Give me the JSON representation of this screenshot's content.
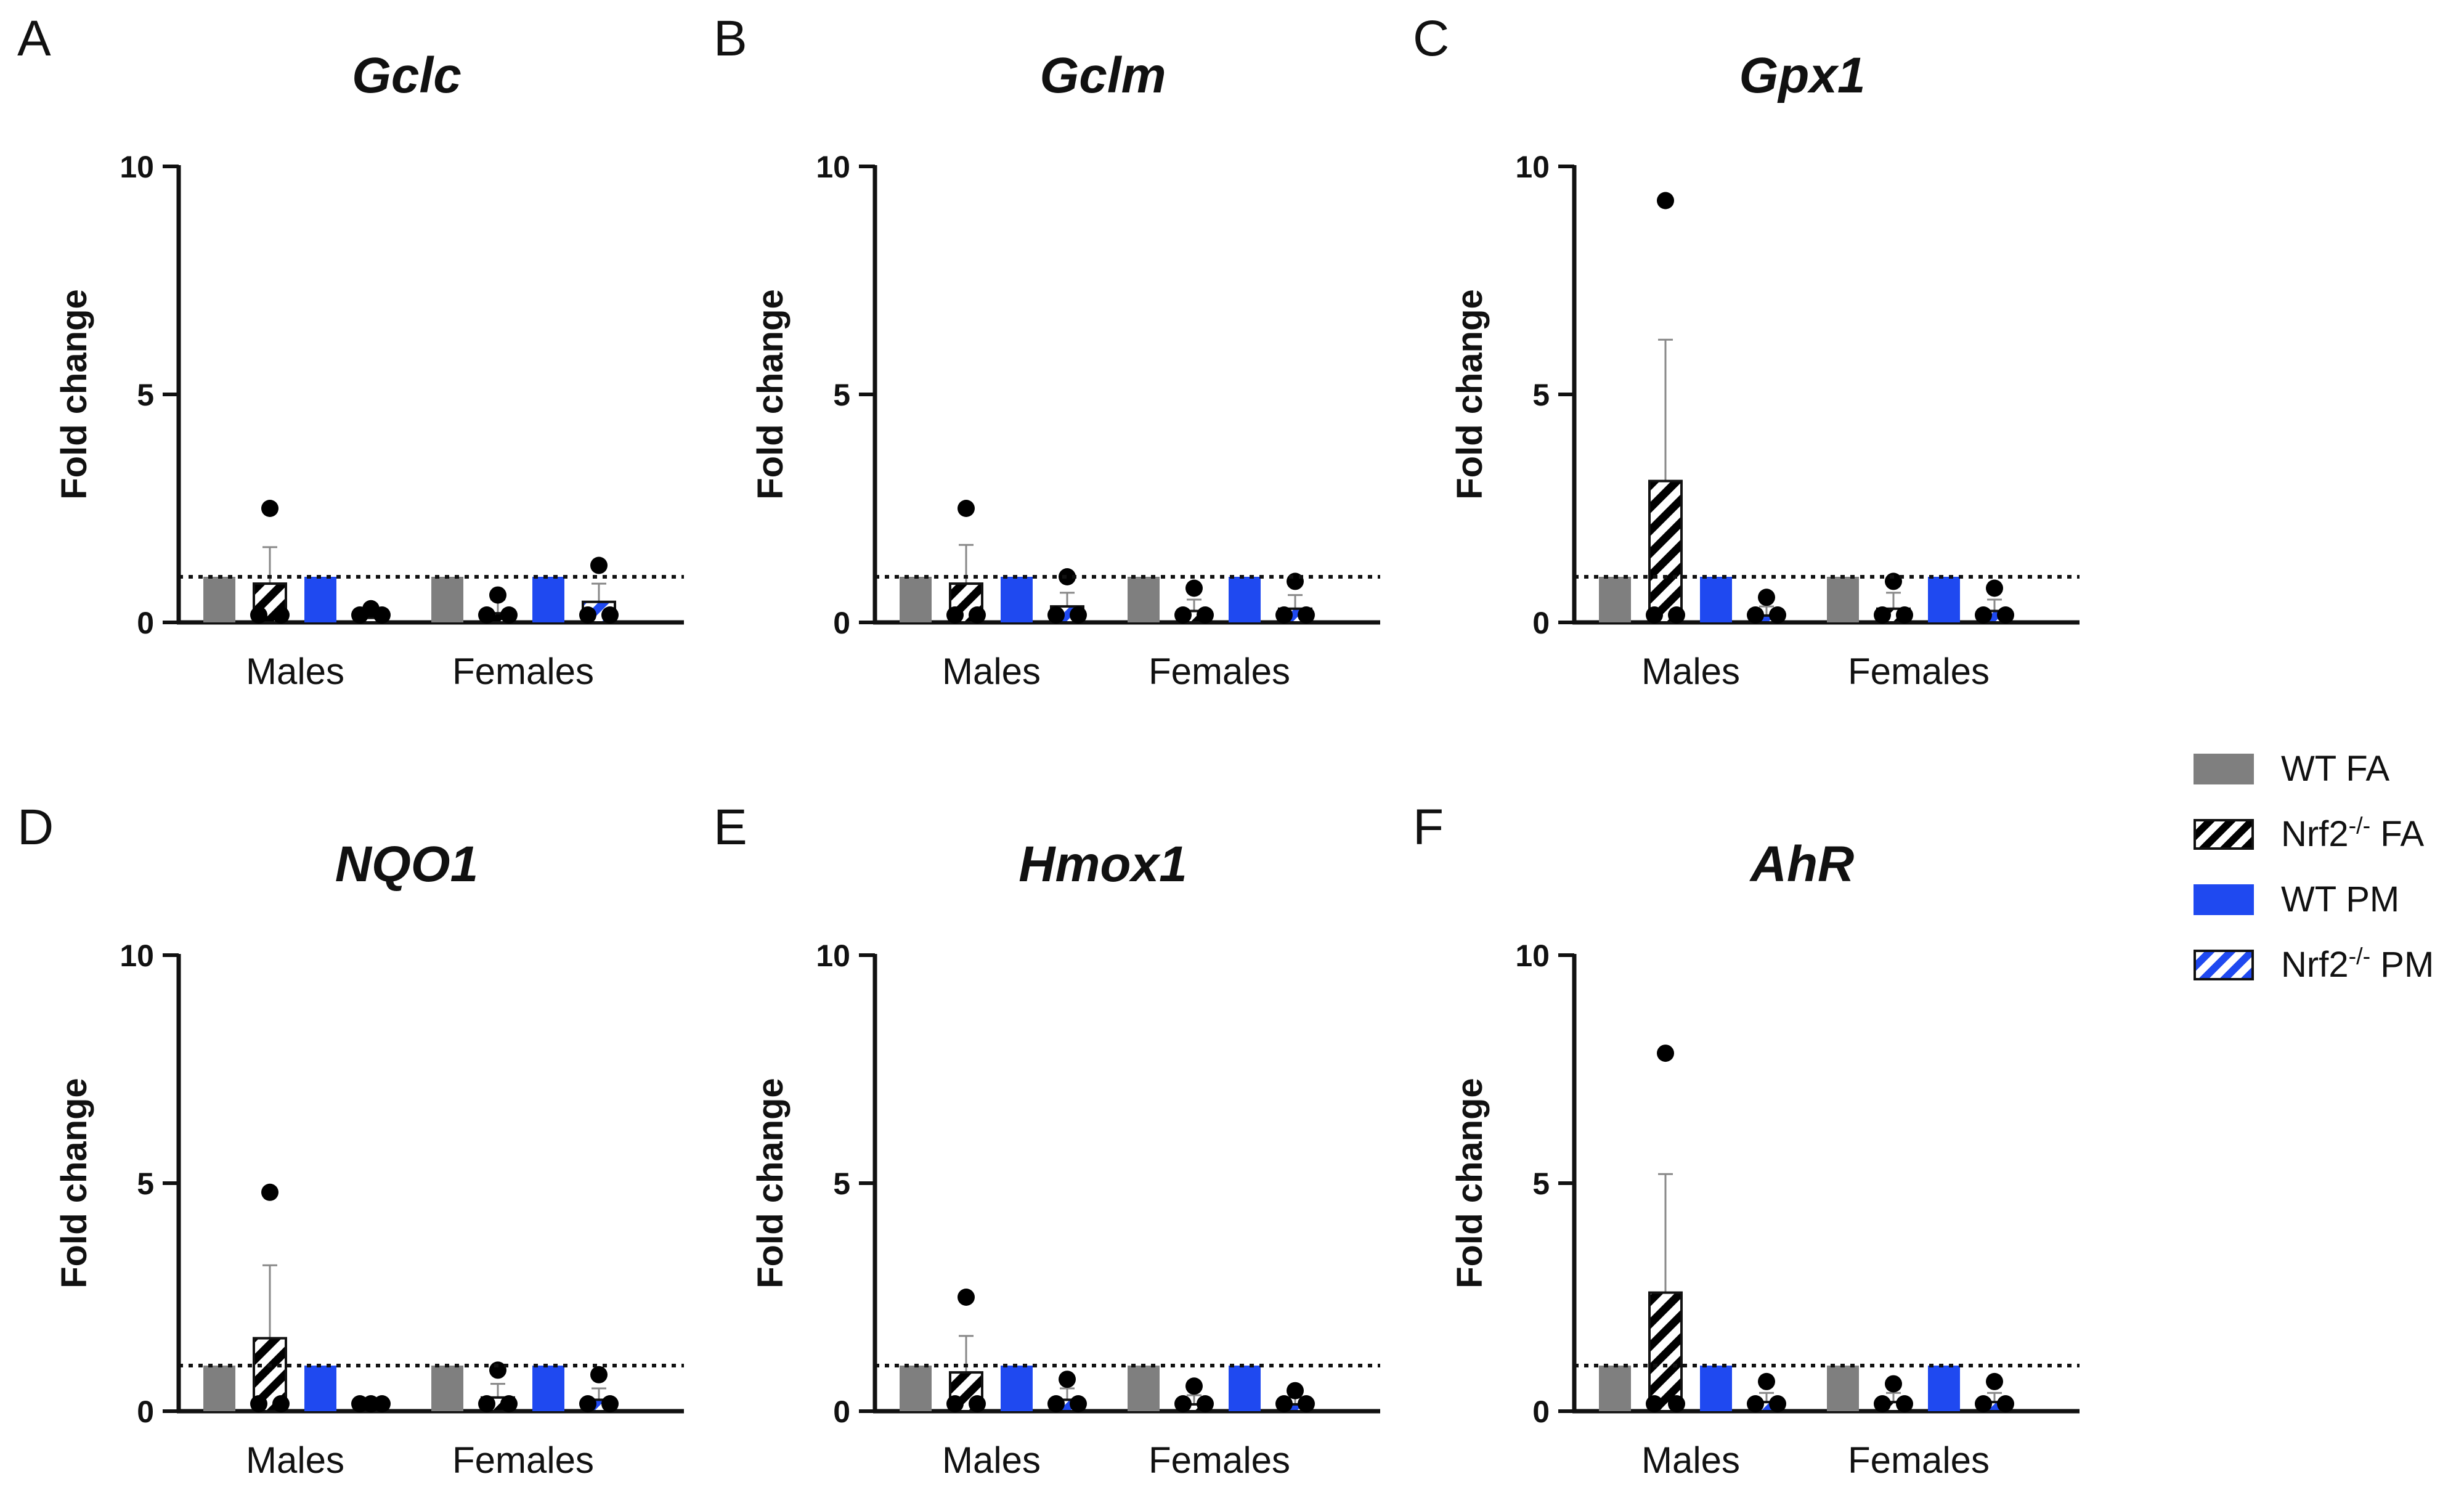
{
  "legend": [
    {
      "key": "wt_fa",
      "base": "WT FA",
      "sup": "",
      "suffix": ""
    },
    {
      "key": "nrf2_fa",
      "base": "Nrf2",
      "sup": "-/-",
      "suffix": " FA"
    },
    {
      "key": "wt_pm",
      "base": "WT PM",
      "sup": "",
      "suffix": ""
    },
    {
      "key": "nrf2_pm",
      "base": "Nrf2",
      "sup": "-/-",
      "suffix": " PM"
    }
  ],
  "colors": {
    "wt_fa": "#7f7f7f",
    "nrf2_fa": "#000000",
    "wt_pm": "#1f49f0",
    "nrf2_pm": "#1f49f0",
    "axis": "#111111"
  },
  "chart_data": [
    {
      "panel": "A",
      "title": "Gclc",
      "type": "bar",
      "ylabel": "Fold change",
      "ylim": [
        0,
        10
      ],
      "yticks": [
        0,
        5,
        10
      ],
      "categories": [
        "Males",
        "Females"
      ],
      "reference_line": 1,
      "series": [
        {
          "name": "WT FA",
          "values": [
            1.0,
            1.0
          ],
          "errors": [
            0,
            0
          ],
          "points": [
            [],
            []
          ]
        },
        {
          "name": "Nrf2-/- FA",
          "values": [
            0.85,
            0.2
          ],
          "errors": [
            0.8,
            0.3
          ],
          "points": [
            [
              2.5,
              0.0,
              0.05
            ],
            [
              0.6,
              0.0,
              0.0
            ]
          ]
        },
        {
          "name": "WT PM",
          "values": [
            1.0,
            1.0
          ],
          "errors": [
            0,
            0
          ],
          "points": [
            [],
            []
          ]
        },
        {
          "name": "Nrf2-/- PM",
          "values": [
            0.1,
            0.45
          ],
          "errors": [
            0.12,
            0.4
          ],
          "points": [
            [
              0.3,
              0.0,
              0.0
            ],
            [
              1.25,
              0.05,
              0.05
            ]
          ]
        }
      ]
    },
    {
      "panel": "B",
      "title": "Gclm",
      "type": "bar",
      "ylabel": "Fold change",
      "ylim": [
        0,
        10
      ],
      "yticks": [
        0,
        5,
        10
      ],
      "categories": [
        "Males",
        "Females"
      ],
      "reference_line": 1,
      "series": [
        {
          "name": "WT FA",
          "values": [
            1.0,
            1.0
          ],
          "errors": [
            0,
            0
          ],
          "points": [
            [],
            []
          ]
        },
        {
          "name": "Nrf2-/- FA",
          "values": [
            0.85,
            0.25
          ],
          "errors": [
            0.85,
            0.25
          ],
          "points": [
            [
              2.5,
              0.0,
              0.05
            ],
            [
              0.75,
              0.0,
              0.0
            ]
          ]
        },
        {
          "name": "WT PM",
          "values": [
            1.0,
            1.0
          ],
          "errors": [
            0,
            0
          ],
          "points": [
            [],
            []
          ]
        },
        {
          "name": "Nrf2-/- PM",
          "values": [
            0.35,
            0.3
          ],
          "errors": [
            0.3,
            0.3
          ],
          "points": [
            [
              1.0,
              0.05,
              0.0
            ],
            [
              0.9,
              0.0,
              0.0
            ]
          ]
        }
      ]
    },
    {
      "panel": "C",
      "title": "Gpx1",
      "type": "bar",
      "ylabel": "Fold change",
      "ylim": [
        0,
        10
      ],
      "yticks": [
        0,
        5,
        10
      ],
      "categories": [
        "Males",
        "Females"
      ],
      "reference_line": 1,
      "series": [
        {
          "name": "WT FA",
          "values": [
            1.0,
            1.0
          ],
          "errors": [
            0,
            0
          ],
          "points": [
            [],
            []
          ]
        },
        {
          "name": "Nrf2-/- FA",
          "values": [
            3.1,
            0.3
          ],
          "errors": [
            3.1,
            0.35
          ],
          "points": [
            [
              9.25,
              0.05,
              0.0
            ],
            [
              0.9,
              0.0,
              0.0
            ]
          ]
        },
        {
          "name": "WT PM",
          "values": [
            1.0,
            1.0
          ],
          "errors": [
            0,
            0
          ],
          "points": [
            [],
            []
          ]
        },
        {
          "name": "Nrf2-/- PM",
          "values": [
            0.15,
            0.25
          ],
          "errors": [
            0.2,
            0.25
          ],
          "points": [
            [
              0.55,
              0.0,
              0.0
            ],
            [
              0.75,
              0.0,
              0.0
            ]
          ]
        }
      ]
    },
    {
      "panel": "D",
      "title": "NQO1",
      "type": "bar",
      "ylabel": "Fold change",
      "ylim": [
        0,
        10
      ],
      "yticks": [
        0,
        5,
        10
      ],
      "categories": [
        "Males",
        "Females"
      ],
      "reference_line": 1,
      "series": [
        {
          "name": "WT FA",
          "values": [
            1.0,
            1.0
          ],
          "errors": [
            0,
            0
          ],
          "points": [
            [],
            []
          ]
        },
        {
          "name": "Nrf2-/- FA",
          "values": [
            1.6,
            0.3
          ],
          "errors": [
            1.6,
            0.3
          ],
          "points": [
            [
              4.8,
              0.0,
              0.05
            ],
            [
              0.9,
              0.0,
              0.0
            ]
          ]
        },
        {
          "name": "WT PM",
          "values": [
            1.0,
            1.0
          ],
          "errors": [
            0,
            0
          ],
          "points": [
            [],
            []
          ]
        },
        {
          "name": "Nrf2-/- PM",
          "values": [
            0.05,
            0.25
          ],
          "errors": [
            0.05,
            0.25
          ],
          "points": [
            [
              0.1,
              0.0,
              0.0
            ],
            [
              0.8,
              0.0,
              0.0
            ]
          ]
        }
      ]
    },
    {
      "panel": "E",
      "title": "Hmox1",
      "type": "bar",
      "ylabel": "Fold change",
      "ylim": [
        0,
        10
      ],
      "yticks": [
        0,
        5,
        10
      ],
      "categories": [
        "Males",
        "Females"
      ],
      "reference_line": 1,
      "series": [
        {
          "name": "WT FA",
          "values": [
            1.0,
            1.0
          ],
          "errors": [
            0,
            0
          ],
          "points": [
            [],
            []
          ]
        },
        {
          "name": "Nrf2-/- FA",
          "values": [
            0.85,
            0.15
          ],
          "errors": [
            0.8,
            0.2
          ],
          "points": [
            [
              2.5,
              0.0,
              0.05
            ],
            [
              0.55,
              0.0,
              0.0
            ]
          ]
        },
        {
          "name": "WT PM",
          "values": [
            1.0,
            1.0
          ],
          "errors": [
            0,
            0
          ],
          "points": [
            [],
            []
          ]
        },
        {
          "name": "Nrf2-/- PM",
          "values": [
            0.25,
            0.15
          ],
          "errors": [
            0.25,
            0.15
          ],
          "points": [
            [
              0.7,
              0.0,
              0.0
            ],
            [
              0.45,
              0.0,
              0.0
            ]
          ]
        }
      ]
    },
    {
      "panel": "F",
      "title": "AhR",
      "type": "bar",
      "ylabel": "Fold change",
      "ylim": [
        0,
        10
      ],
      "yticks": [
        0,
        5,
        10
      ],
      "categories": [
        "Males",
        "Females"
      ],
      "reference_line": 1,
      "series": [
        {
          "name": "WT FA",
          "values": [
            1.0,
            1.0
          ],
          "errors": [
            0,
            0
          ],
          "points": [
            [],
            []
          ]
        },
        {
          "name": "Nrf2-/- FA",
          "values": [
            2.6,
            0.2
          ],
          "errors": [
            2.6,
            0.2
          ],
          "points": [
            [
              7.85,
              0.0,
              0.05
            ],
            [
              0.6,
              0.0,
              0.0
            ]
          ]
        },
        {
          "name": "WT PM",
          "values": [
            1.0,
            1.0
          ],
          "errors": [
            0,
            0
          ],
          "points": [
            [],
            []
          ]
        },
        {
          "name": "Nrf2-/- PM",
          "values": [
            0.2,
            0.2
          ],
          "errors": [
            0.2,
            0.2
          ],
          "points": [
            [
              0.65,
              0.0,
              0.0
            ],
            [
              0.65,
              0.0,
              0.0
            ]
          ]
        }
      ]
    }
  ]
}
